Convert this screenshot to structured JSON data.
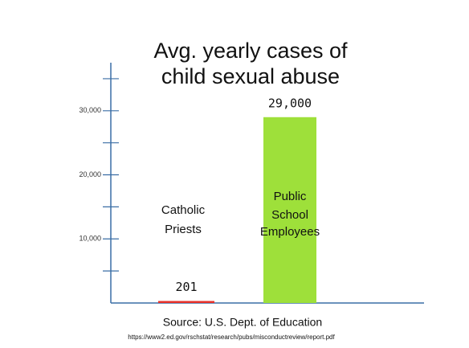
{
  "chart_data": {
    "type": "bar",
    "title": "Avg. yearly cases of\nchild sexual abuse",
    "categories": [
      "Catholic\nPriests",
      "Public\nSchool\nEmployees"
    ],
    "values": [
      201,
      29000
    ],
    "value_labels": [
      "201",
      "29,000"
    ],
    "colors": [
      "#e8322a",
      "#9ee03a"
    ],
    "axis_color": "#3a6ea5",
    "ylim": [
      0,
      37500
    ],
    "yticks": [
      {
        "value": 10000,
        "label": "10,000"
      },
      {
        "value": 20000,
        "label": "20,000"
      },
      {
        "value": 30000,
        "label": "30,000"
      }
    ],
    "yticks_minor": [
      5000,
      15000,
      25000,
      35000
    ],
    "source": "Source: U.S. Dept. of Education",
    "source_url": "https://www2.ed.gov/rschstat/research/pubs/misconductreview/report.pdf"
  }
}
